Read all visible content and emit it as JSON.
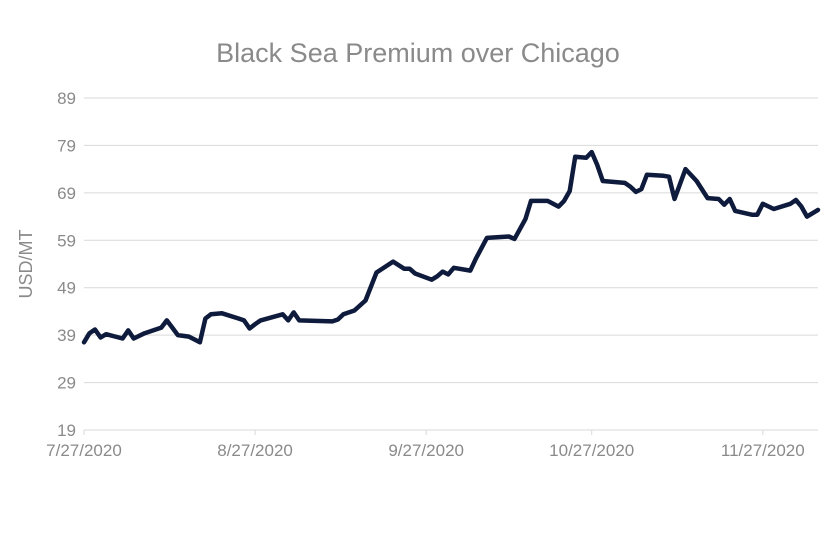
{
  "chart_data": {
    "type": "line",
    "title": "Black Sea Premium over Chicago",
    "xlabel": "",
    "ylabel": "USD/MT",
    "ylim": [
      19,
      89
    ],
    "yticks": [
      19,
      29,
      39,
      49,
      59,
      69,
      79,
      89
    ],
    "xlim_dates": [
      "2020-07-27",
      "2020-12-07"
    ],
    "xticks": [
      {
        "date": "2020-07-27",
        "label": "7/27/2020"
      },
      {
        "date": "2020-08-27",
        "label": "8/27/2020"
      },
      {
        "date": "2020-09-27",
        "label": "9/27/2020"
      },
      {
        "date": "2020-10-27",
        "label": "10/27/2020"
      },
      {
        "date": "2020-11-27",
        "label": "11/27/2020"
      }
    ],
    "grid": true,
    "legend": "none",
    "series": [
      {
        "name": "Black Sea Premium over Chicago",
        "color": "#0f1b3c",
        "points": [
          [
            "2020-07-27",
            37.5
          ],
          [
            "2020-07-28",
            39.4
          ],
          [
            "2020-07-29",
            40.2
          ],
          [
            "2020-07-30",
            38.5
          ],
          [
            "2020-07-31",
            39.2
          ],
          [
            "2020-08-03",
            38.3
          ],
          [
            "2020-08-04",
            40.0
          ],
          [
            "2020-08-05",
            38.3
          ],
          [
            "2020-08-07",
            39.4
          ],
          [
            "2020-08-10",
            40.6
          ],
          [
            "2020-08-11",
            42.1
          ],
          [
            "2020-08-12",
            40.6
          ],
          [
            "2020-08-13",
            39.0
          ],
          [
            "2020-08-15",
            38.7
          ],
          [
            "2020-08-17",
            37.5
          ],
          [
            "2020-08-18",
            42.5
          ],
          [
            "2020-08-19",
            43.4
          ],
          [
            "2020-08-21",
            43.6
          ],
          [
            "2020-08-24",
            42.5
          ],
          [
            "2020-08-25",
            42.1
          ],
          [
            "2020-08-26",
            40.4
          ],
          [
            "2020-08-27",
            41.3
          ],
          [
            "2020-08-28",
            42.1
          ],
          [
            "2020-09-01",
            43.4
          ],
          [
            "2020-09-02",
            42.1
          ],
          [
            "2020-09-03",
            43.8
          ],
          [
            "2020-09-04",
            42.1
          ],
          [
            "2020-09-10",
            41.9
          ],
          [
            "2020-09-11",
            42.3
          ],
          [
            "2020-09-12",
            43.4
          ],
          [
            "2020-09-14",
            44.2
          ],
          [
            "2020-09-16",
            46.3
          ],
          [
            "2020-09-18",
            52.2
          ],
          [
            "2020-09-21",
            54.5
          ],
          [
            "2020-09-23",
            53.0
          ],
          [
            "2020-09-24",
            53.0
          ],
          [
            "2020-09-25",
            52.0
          ],
          [
            "2020-09-28",
            50.7
          ],
          [
            "2020-09-29",
            51.4
          ],
          [
            "2020-09-30",
            52.4
          ],
          [
            "2020-10-01",
            51.8
          ],
          [
            "2020-10-02",
            53.2
          ],
          [
            "2020-10-05",
            52.6
          ],
          [
            "2020-10-06",
            55.1
          ],
          [
            "2020-10-08",
            59.5
          ],
          [
            "2020-10-12",
            59.8
          ],
          [
            "2020-10-13",
            59.3
          ],
          [
            "2020-10-15",
            63.5
          ],
          [
            "2020-10-16",
            67.3
          ],
          [
            "2020-10-19",
            67.3
          ],
          [
            "2020-10-21",
            66.1
          ],
          [
            "2020-10-22",
            67.3
          ],
          [
            "2020-10-23",
            69.4
          ],
          [
            "2020-10-24",
            76.6
          ],
          [
            "2020-10-26",
            76.4
          ],
          [
            "2020-10-27",
            77.6
          ],
          [
            "2020-10-28",
            74.9
          ],
          [
            "2020-10-29",
            71.5
          ],
          [
            "2020-11-02",
            71.1
          ],
          [
            "2020-11-03",
            70.3
          ],
          [
            "2020-11-04",
            69.2
          ],
          [
            "2020-11-05",
            69.8
          ],
          [
            "2020-11-06",
            72.8
          ],
          [
            "2020-11-09",
            72.6
          ],
          [
            "2020-11-10",
            72.4
          ],
          [
            "2020-11-11",
            67.7
          ],
          [
            "2020-11-13",
            74.0
          ],
          [
            "2020-11-15",
            71.5
          ],
          [
            "2020-11-17",
            67.9
          ],
          [
            "2020-11-19",
            67.7
          ],
          [
            "2020-11-20",
            66.5
          ],
          [
            "2020-11-21",
            67.7
          ],
          [
            "2020-11-22",
            65.2
          ],
          [
            "2020-11-25",
            64.4
          ],
          [
            "2020-11-26",
            64.4
          ],
          [
            "2020-11-27",
            66.7
          ],
          [
            "2020-11-29",
            65.6
          ],
          [
            "2020-12-02",
            66.7
          ],
          [
            "2020-12-03",
            67.5
          ],
          [
            "2020-12-04",
            66.1
          ],
          [
            "2020-12-05",
            64.0
          ],
          [
            "2020-12-07",
            65.4
          ]
        ]
      }
    ]
  }
}
